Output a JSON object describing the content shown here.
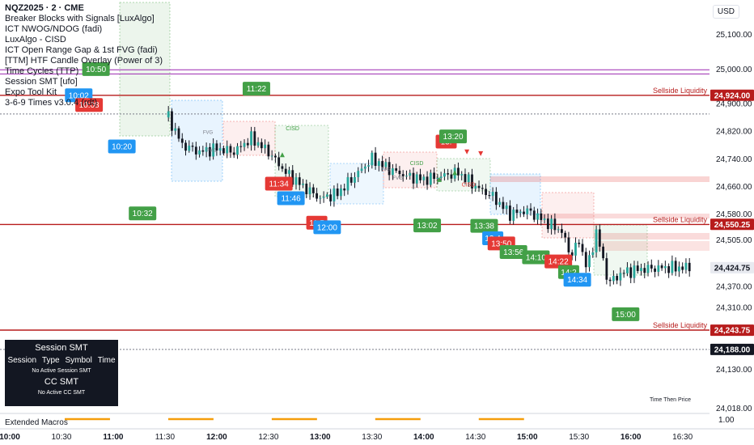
{
  "header": {
    "symbol": "NQZ2025 · 2 · CME",
    "currency": "USD"
  },
  "indicators": [
    "Breaker Blocks with Signals [LuxAlgo]",
    "ICT NWOG/NDOG (fadi)",
    "LuxAlgo - CISD",
    "ICT Open Range Gap & 1st FVG (fadi)",
    "[TTM] HTF Candle Overlay (Power of 3)",
    "Time Cycles (TTP)",
    "Session SMT [ufo]",
    "Expo Tool Kit",
    "3-6-9 Times v3.0.4 (rdt)"
  ],
  "smt_panel": {
    "title": "Session SMT",
    "columns": [
      "Session",
      "Type",
      "Symbol",
      "Time"
    ],
    "session_status": "No Active Session SMT",
    "cc_title": "CC SMT",
    "cc_status": "No Active CC SMT"
  },
  "footer": {
    "extended_macros": "Extended Macros",
    "time_then_price": "Time Then Price",
    "extended_scale": "1.00"
  },
  "colors": {
    "up": "#26a69a",
    "down": "#ef5350",
    "green_box": "#43a047",
    "red_box": "#e53935",
    "blue_box": "#2196f3",
    "liquidity": "#b71c1c",
    "purple_line": "#9c27b0",
    "macro": "#f59e0b"
  },
  "chart_data": {
    "type": "candlestick",
    "x_ticks": [
      "10:00",
      "10:30",
      "11:00",
      "11:30",
      "12:00",
      "12:30",
      "13:00",
      "13:30",
      "14:00",
      "14:30",
      "15:00",
      "15:30",
      "16:00",
      "16:30"
    ],
    "y_ticks": [
      25100,
      25000,
      24900,
      24820,
      24740,
      24660,
      24580,
      24505,
      24370,
      24310,
      24130,
      24018
    ],
    "ylim": [
      24005,
      25200
    ],
    "price_labels": [
      {
        "value": 24924.0,
        "text": "24,924.00",
        "color": "#b71c1c"
      },
      {
        "value": 24550.25,
        "text": "24,550.25",
        "color": "#b71c1c"
      },
      {
        "value": 24243.75,
        "text": "24,243.75",
        "color": "#b71c1c"
      },
      {
        "value": 24188.0,
        "text": "24,188.00",
        "color": "#131722"
      },
      {
        "value": 24424.75,
        "text": "24,424.75",
        "color": "#e8eaf0"
      }
    ],
    "liquidity_lines": [
      {
        "value": 24924,
        "label": "Sellside Liquidity"
      },
      {
        "value": 24550,
        "label": "Sellside Liquidity"
      },
      {
        "value": 24244,
        "label": "Sellside Liquidity"
      }
    ],
    "purple_lines": [
      24998,
      24986
    ],
    "dotted_lines": [
      24870,
      24188
    ],
    "cisd_labels": [
      {
        "x": "12:40",
        "y": 24823,
        "text": "CISD",
        "color": "#43a047"
      },
      {
        "x": "13:52",
        "y": 24722,
        "text": "CISD",
        "color": "#43a047"
      },
      {
        "x": "14:22",
        "y": 24660,
        "text": "CISD",
        "color": "#e53935"
      }
    ],
    "fvg_labels": [
      {
        "x": "11:52",
        "y": 24812,
        "text": "FVG"
      },
      {
        "x": "11:54",
        "y": 24760,
        "text": "FVG"
      },
      {
        "x": "13:35",
        "y": 24705,
        "text": "FVG"
      },
      {
        "x": "13:42",
        "y": 24680,
        "text": "FVG"
      }
    ],
    "time_markers": [
      {
        "time": "10:50",
        "color": "green",
        "x": "10:50",
        "y": 25000
      },
      {
        "time": "10:02",
        "color": "blue",
        "x": "10:40",
        "y": 24924
      },
      {
        "time": "10:08",
        "color": "red",
        "x": "10:46",
        "y": 24896
      },
      {
        "time": "11:22",
        "color": "green",
        "x": "12:23",
        "y": 24943
      },
      {
        "time": "10:20",
        "color": "blue",
        "x": "11:05",
        "y": 24776
      },
      {
        "time": "10:32",
        "color": "green",
        "x": "11:17",
        "y": 24582
      },
      {
        "time": "11:34",
        "color": "red",
        "x": "12:36",
        "y": 24668
      },
      {
        "time": "11:46",
        "color": "blue",
        "x": "12:43",
        "y": 24626
      },
      {
        "time": "11:5",
        "color": "red",
        "x": "12:58",
        "y": 24555
      },
      {
        "time": "12:00",
        "color": "blue",
        "x": "13:04",
        "y": 24542
      },
      {
        "time": "13:02",
        "color": "green",
        "x": "14:02",
        "y": 24547
      },
      {
        "time": "13:",
        "color": "red",
        "x": "14:13",
        "y": 24790
      },
      {
        "time": "13:20",
        "color": "green",
        "x": "14:17",
        "y": 24805
      },
      {
        "time": "13:38",
        "color": "green",
        "x": "14:35",
        "y": 24546
      },
      {
        "time": "13:4",
        "color": "blue",
        "x": "14:40",
        "y": 24510
      },
      {
        "time": "13:50",
        "color": "red",
        "x": "14:45",
        "y": 24495
      },
      {
        "time": "13:56",
        "color": "green",
        "x": "14:52",
        "y": 24470
      },
      {
        "time": "14:10",
        "color": "green",
        "x": "15:05",
        "y": 24455
      },
      {
        "time": "14:22",
        "color": "red",
        "x": "15:18",
        "y": 24443
      },
      {
        "time": "14:2",
        "color": "green",
        "x": "15:24",
        "y": 24412
      },
      {
        "time": "14:34",
        "color": "blue",
        "x": "15:29",
        "y": 24390
      },
      {
        "time": "15:00",
        "color": "green",
        "x": "15:57",
        "y": 24290
      }
    ]
  }
}
